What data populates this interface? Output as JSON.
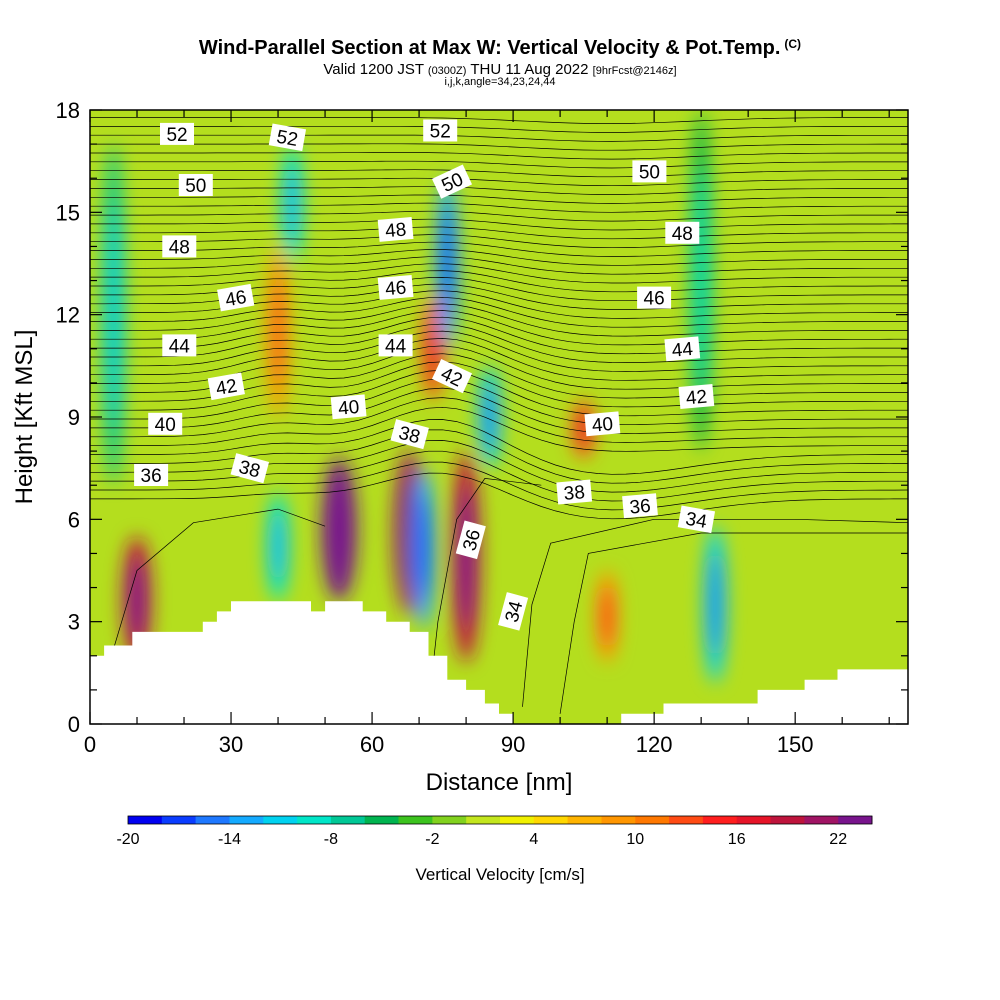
{
  "title": {
    "main": "Wind-Parallel Section at Max W: Vertical Velocity & Pot.Temp.",
    "copyright": "(C)",
    "valid_prefix": "Valid 1200 JST",
    "valid_z": "(0300Z)",
    "valid_date": "THU 11 Aug 2022",
    "forecast": "[9hrFcst@2146z]",
    "params": "i,j,k,angle=34,23,24,44"
  },
  "chart_data": {
    "type": "heatmap",
    "xlabel": "Distance [nm]",
    "ylabel": "Height [Kft MSL]",
    "xlim": [
      0,
      174
    ],
    "ylim": [
      0,
      18
    ],
    "x_ticks": [
      0,
      30,
      60,
      90,
      120,
      150
    ],
    "y_ticks": [
      0,
      3,
      6,
      9,
      12,
      15,
      18
    ],
    "colorbar": {
      "label": "Vertical Velocity [cm/s]",
      "ticks": [
        -20,
        -14,
        -8,
        -2,
        4,
        10,
        16,
        22
      ],
      "range": [
        -20,
        24
      ],
      "colors": [
        "#0000f0",
        "#0a3cff",
        "#1e78ff",
        "#14aaff",
        "#00d2f0",
        "#00e6c8",
        "#00c896",
        "#00b450",
        "#3cc31e",
        "#82d21e",
        "#c3e61e",
        "#f0f000",
        "#ffd700",
        "#ffb400",
        "#ff9600",
        "#ff7800",
        "#ff4b14",
        "#ff1e1e",
        "#e61428",
        "#be143c",
        "#a01464",
        "#78148c"
      ]
    },
    "series": [
      {
        "name": "potential temperature contours",
        "label_values": [
          34,
          36,
          38,
          40,
          42,
          44,
          46,
          48,
          50,
          52
        ]
      }
    ],
    "w_features": [
      {
        "x": 10,
        "h": [
          1.8,
          5.5
        ],
        "value": 18
      },
      {
        "x": 40,
        "h": [
          3.6,
          6.8
        ],
        "value": -10
      },
      {
        "x": 53,
        "h": [
          3.6,
          7.8
        ],
        "value": 22
      },
      {
        "x": 68,
        "h": [
          3.2,
          8.0
        ],
        "value": 20
      },
      {
        "x": 71,
        "h": [
          2.8,
          7.5
        ],
        "value": -14
      },
      {
        "x": 80,
        "h": [
          1.8,
          8.0
        ],
        "value": 18
      },
      {
        "x": 110,
        "h": [
          1.8,
          4.5
        ],
        "value": 10
      },
      {
        "x": 133,
        "h": [
          1.2,
          5.8
        ],
        "value": -12
      },
      {
        "x": 105,
        "h": [
          7.8,
          9.5
        ],
        "value": 12
      },
      {
        "x": 73,
        "h": [
          9.5,
          12.5
        ],
        "value": 12
      },
      {
        "x": 40,
        "h": [
          9,
          14
        ],
        "value": 8
      },
      {
        "x": 76,
        "h": [
          11,
          16
        ],
        "value": -14
      },
      {
        "x": 85,
        "h": [
          7.5,
          10.5
        ],
        "value": -12
      },
      {
        "x": 43,
        "h": [
          13.5,
          17
        ],
        "value": -10
      },
      {
        "x": 130,
        "h": [
          8,
          18
        ],
        "value": -6
      },
      {
        "x": 5,
        "h": [
          7,
          17
        ],
        "value": -8
      }
    ],
    "terrain_kft": [
      [
        0,
        2.0
      ],
      [
        3,
        2.0
      ],
      [
        3,
        2.3
      ],
      [
        9,
        2.3
      ],
      [
        9,
        2.7
      ],
      [
        24,
        2.7
      ],
      [
        24,
        3.0
      ],
      [
        27,
        3.0
      ],
      [
        27,
        3.3
      ],
      [
        30,
        3.3
      ],
      [
        30,
        3.6
      ],
      [
        47,
        3.6
      ],
      [
        47,
        3.3
      ],
      [
        50,
        3.3
      ],
      [
        50,
        3.6
      ],
      [
        58,
        3.6
      ],
      [
        58,
        3.3
      ],
      [
        63,
        3.3
      ],
      [
        63,
        3.0
      ],
      [
        68,
        3.0
      ],
      [
        68,
        2.7
      ],
      [
        72,
        2.7
      ],
      [
        72,
        2.0
      ],
      [
        76,
        2.0
      ],
      [
        76,
        1.3
      ],
      [
        80,
        1.3
      ],
      [
        80,
        1.0
      ],
      [
        84,
        1.0
      ],
      [
        84,
        0.6
      ],
      [
        87,
        0.6
      ],
      [
        87,
        0.3
      ],
      [
        90,
        0.3
      ],
      [
        90,
        0.0
      ],
      [
        113,
        0.0
      ],
      [
        113,
        0.3
      ],
      [
        122,
        0.3
      ],
      [
        122,
        0.6
      ],
      [
        142,
        0.6
      ],
      [
        142,
        1.0
      ],
      [
        152,
        1.0
      ],
      [
        152,
        1.3
      ],
      [
        159,
        1.3
      ],
      [
        159,
        1.6
      ],
      [
        174,
        1.6
      ]
    ],
    "contour_labels": [
      {
        "value": "52",
        "x": 18.5,
        "y": 17.3,
        "angle": 0
      },
      {
        "value": "52",
        "x": 42,
        "y": 17.2,
        "angle": 10
      },
      {
        "value": "52",
        "x": 74.5,
        "y": 17.4,
        "angle": 0
      },
      {
        "value": "50",
        "x": 22.5,
        "y": 15.8,
        "angle": 0
      },
      {
        "value": "50",
        "x": 77,
        "y": 15.9,
        "angle": -25
      },
      {
        "value": "50",
        "x": 119,
        "y": 16.2,
        "angle": 0
      },
      {
        "value": "48",
        "x": 19,
        "y": 14.0,
        "angle": 0
      },
      {
        "value": "48",
        "x": 65,
        "y": 14.5,
        "angle": -5
      },
      {
        "value": "48",
        "x": 126,
        "y": 14.4,
        "angle": 0
      },
      {
        "value": "46",
        "x": 31,
        "y": 12.5,
        "angle": -10
      },
      {
        "value": "46",
        "x": 65,
        "y": 12.8,
        "angle": -5
      },
      {
        "value": "46",
        "x": 120,
        "y": 12.5,
        "angle": 0
      },
      {
        "value": "44",
        "x": 19,
        "y": 11.1,
        "angle": 0
      },
      {
        "value": "44",
        "x": 65,
        "y": 11.1,
        "angle": 0
      },
      {
        "value": "44",
        "x": 126,
        "y": 11.0,
        "angle": -5
      },
      {
        "value": "42",
        "x": 29,
        "y": 9.9,
        "angle": -10
      },
      {
        "value": "42",
        "x": 77,
        "y": 10.2,
        "angle": 25
      },
      {
        "value": "42",
        "x": 129,
        "y": 9.6,
        "angle": -5
      },
      {
        "value": "40",
        "x": 16,
        "y": 8.8,
        "angle": 0
      },
      {
        "value": "40",
        "x": 55,
        "y": 9.3,
        "angle": -5
      },
      {
        "value": "40",
        "x": 109,
        "y": 8.8,
        "angle": -5
      },
      {
        "value": "38",
        "x": 34,
        "y": 7.5,
        "angle": 15
      },
      {
        "value": "38",
        "x": 68,
        "y": 8.5,
        "angle": 15
      },
      {
        "value": "38",
        "x": 103,
        "y": 6.8,
        "angle": -5
      },
      {
        "value": "36",
        "x": 13,
        "y": 7.3,
        "angle": 0
      },
      {
        "value": "36",
        "x": 81,
        "y": 5.4,
        "angle": -75
      },
      {
        "value": "36",
        "x": 117,
        "y": 6.4,
        "angle": -5
      },
      {
        "value": "34",
        "x": 90,
        "y": 3.3,
        "angle": -75
      },
      {
        "value": "34",
        "x": 129,
        "y": 6.0,
        "angle": 10
      }
    ]
  }
}
